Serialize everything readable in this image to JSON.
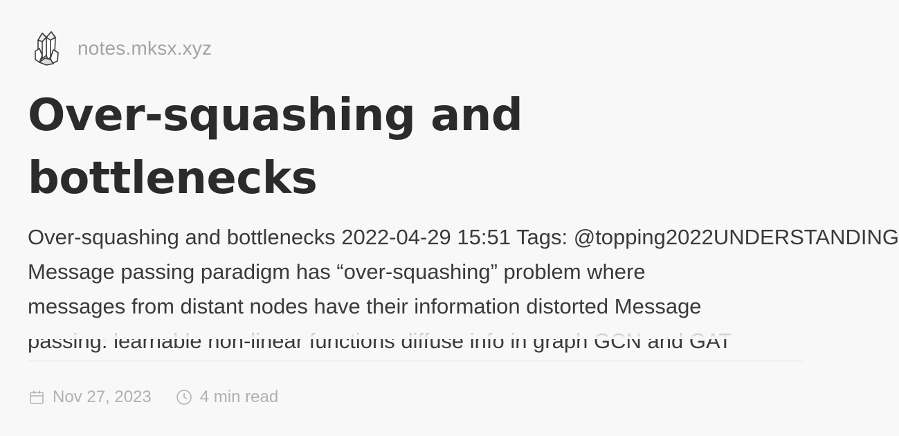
{
  "site": {
    "name": "notes.mksx.xyz",
    "logo_icon": "crystal-cluster-icon"
  },
  "post": {
    "title_line_1": "Over-squashing and",
    "title_line_2": "bottlenecks",
    "excerpt_lines": [
      "Over-squashing and bottlenecks 2022-04-29 15:51 Tags: @topping2022UNDERSTANDING",
      "Message passing paradigm has “over-squashing” problem where",
      "messages from distant nodes have their information distorted Message",
      "passing: learnable non-linear functions diffuse info in graph GCN and GAT"
    ]
  },
  "meta": {
    "date": "Nov 27, 2023",
    "date_icon": "calendar-icon",
    "read_time": "4 min read",
    "read_time_icon": "clock-icon"
  },
  "colors": {
    "background": "#f8f8f9",
    "title": "#2b2b2e",
    "body": "#3a3a3d",
    "muted": "#a3a3a8",
    "divider": "#e5e5e8"
  }
}
